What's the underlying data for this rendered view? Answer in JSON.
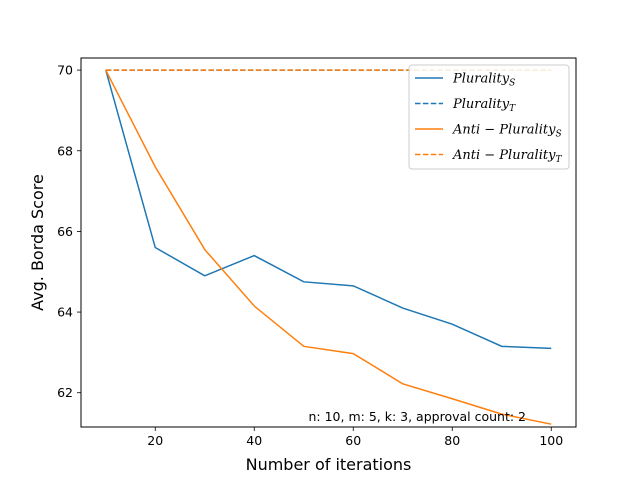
{
  "chart_data": {
    "type": "line",
    "title": "",
    "xlabel": "Number of iterations",
    "ylabel": "Avg. Borda Score",
    "xlim": [
      5,
      105
    ],
    "ylim": [
      61.15,
      70.3
    ],
    "xticks": [
      20,
      40,
      60,
      80,
      100
    ],
    "yticks": [
      62,
      64,
      66,
      68,
      70
    ],
    "grid": false,
    "legend_position": "top-right",
    "annotation": "n: 10, m: 5, k: 3, approval count: 2",
    "series": [
      {
        "name": "Plurality",
        "name_subscript": "S",
        "color": "#1f77b4",
        "dash": "solid",
        "x": [
          10,
          20,
          30,
          40,
          50,
          60,
          70,
          80,
          90,
          100
        ],
        "y": [
          70.0,
          65.6,
          64.9,
          65.4,
          64.75,
          64.65,
          64.1,
          63.7,
          63.15,
          63.1
        ]
      },
      {
        "name": "Plurality",
        "name_subscript": "T",
        "color": "#1f77b4",
        "dash": "dashed",
        "x": [
          10,
          20,
          30,
          40,
          50,
          60,
          70,
          80,
          90,
          100
        ],
        "y": [
          70.0,
          70.0,
          70.0,
          70.0,
          70.0,
          70.0,
          70.0,
          70.0,
          70.0,
          70.0
        ]
      },
      {
        "name": "Anti − Plurality",
        "name_subscript": "S",
        "color": "#ff7f0e",
        "dash": "solid",
        "x": [
          10,
          20,
          30,
          40,
          50,
          60,
          70,
          80,
          90,
          100
        ],
        "y": [
          70.0,
          67.6,
          65.55,
          64.15,
          63.15,
          62.97,
          62.22,
          61.85,
          61.47,
          61.22
        ]
      },
      {
        "name": "Anti − Plurality",
        "name_subscript": "T",
        "color": "#ff7f0e",
        "dash": "dashed",
        "x": [
          10,
          20,
          30,
          40,
          50,
          60,
          70,
          80,
          90,
          100
        ],
        "y": [
          70.0,
          70.0,
          70.0,
          70.0,
          70.0,
          70.0,
          70.0,
          70.0,
          70.0,
          70.0
        ]
      }
    ]
  }
}
